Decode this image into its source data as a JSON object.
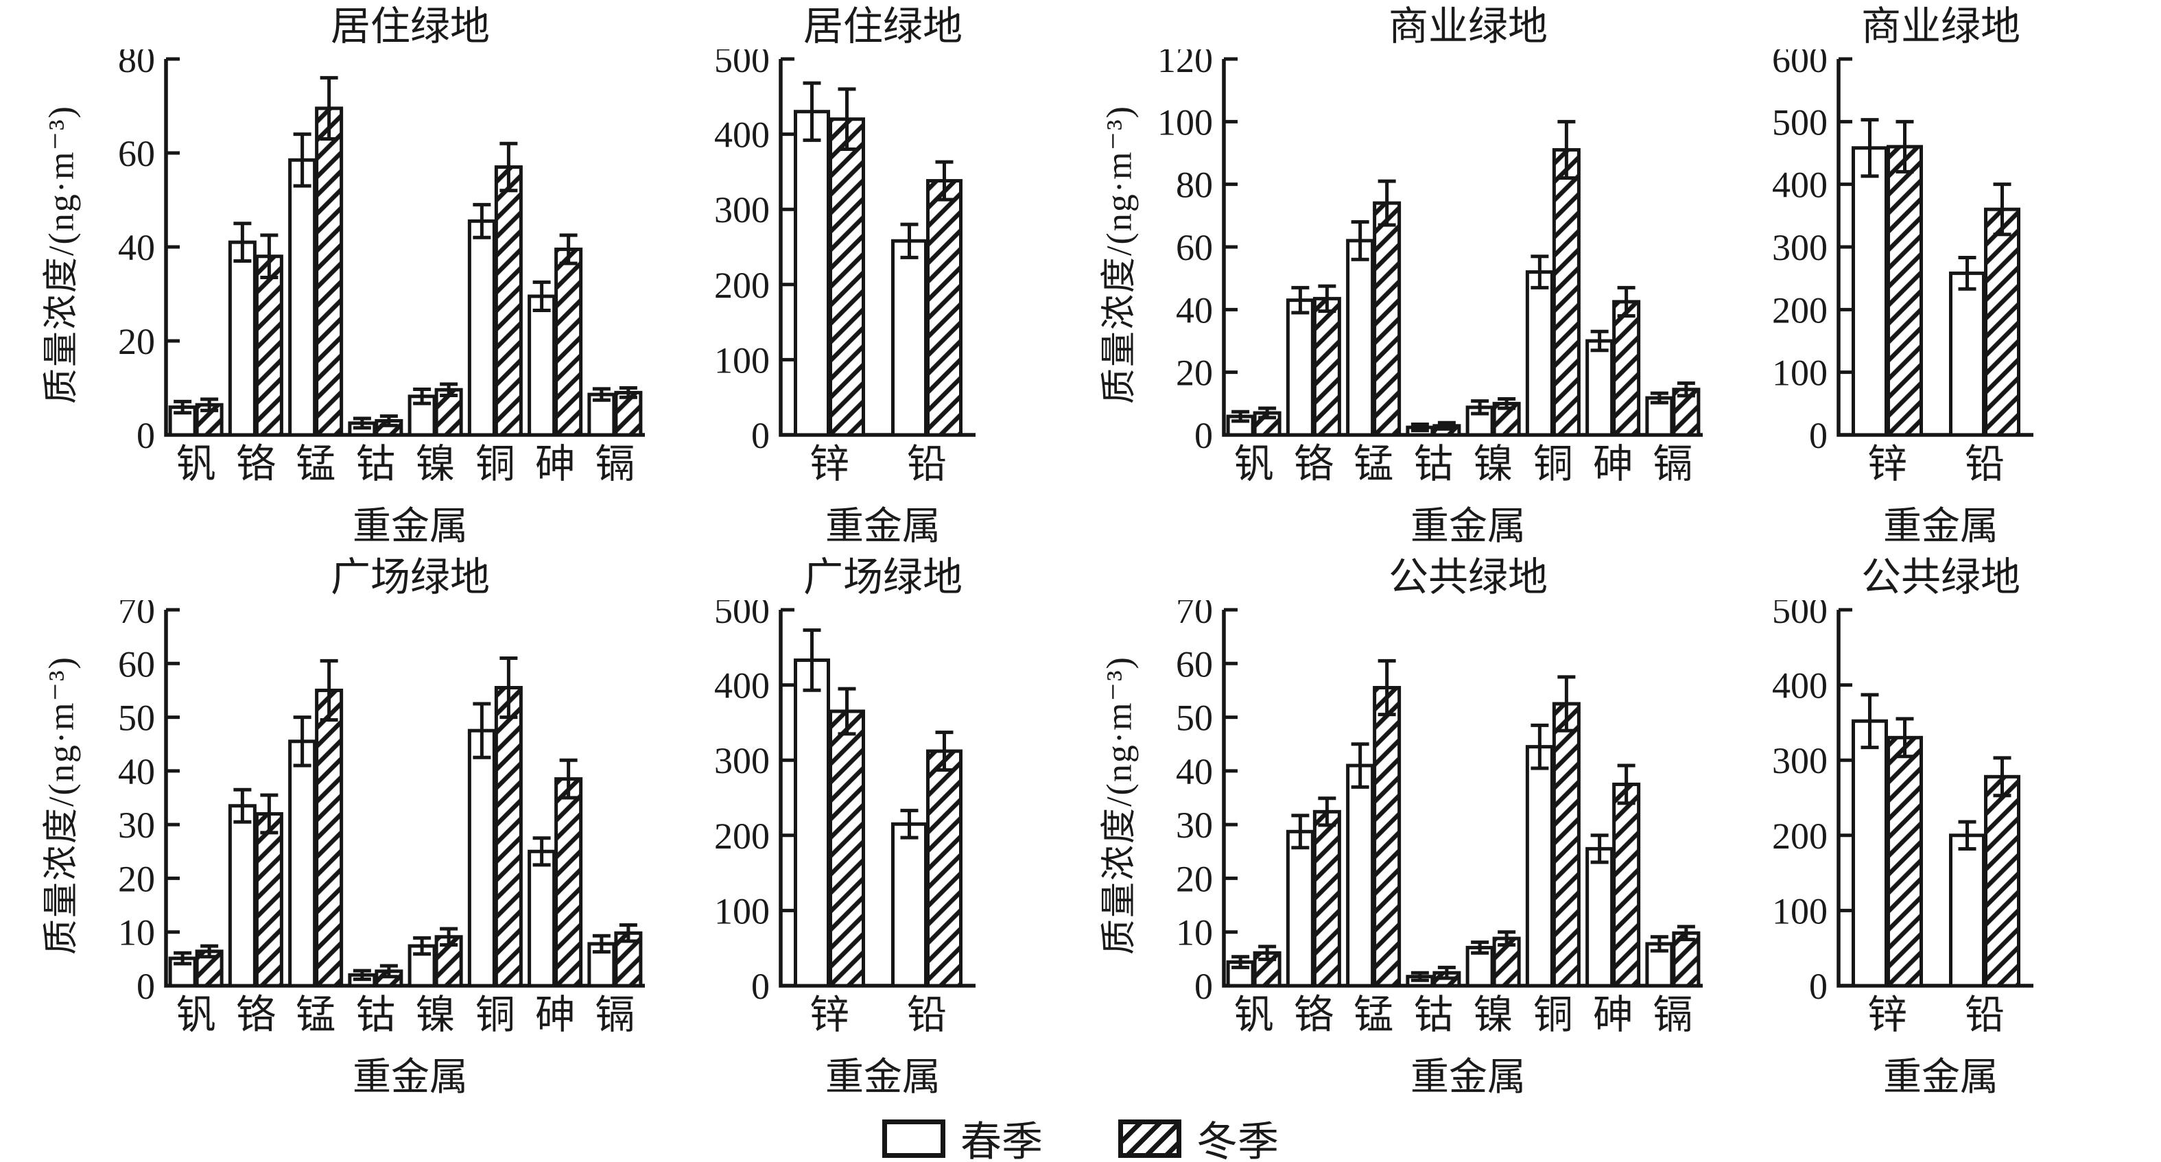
{
  "figure": {
    "background": "#ffffff",
    "ink": "#161616"
  },
  "legend": {
    "spring": "春季",
    "winter": "冬季"
  },
  "chart_data": [
    {
      "type": "bar",
      "size": "main",
      "title": "居住绿地",
      "ylabel": "质量浓度/(ng·m⁻³)",
      "xlabel": "重金属",
      "ylim": [
        0,
        80
      ],
      "ytick_step": 20,
      "grid": false,
      "error_bars": true,
      "categories": [
        "钒",
        "铬",
        "锰",
        "钴",
        "镍",
        "铜",
        "砷",
        "镉"
      ],
      "series": [
        {
          "name": "春季",
          "pattern": "plain",
          "values": [
            5.9,
            41,
            58.5,
            2.5,
            8.2,
            45.5,
            29.5,
            8.6
          ],
          "errors": [
            1.2,
            4,
            5.5,
            1,
            1.5,
            3.5,
            3,
            1.2
          ]
        },
        {
          "name": "冬季",
          "pattern": "hatch",
          "values": [
            6.4,
            38,
            69.5,
            3,
            9.6,
            57,
            39.5,
            9
          ],
          "errors": [
            1.2,
            4.5,
            6.5,
            1,
            1.2,
            5,
            3,
            1
          ]
        }
      ]
    },
    {
      "type": "bar",
      "size": "small",
      "title": "居住绿地",
      "xlabel": "重金属",
      "ylim": [
        0,
        500
      ],
      "ytick_step": 100,
      "grid": false,
      "error_bars": true,
      "categories": [
        "锌",
        "铅"
      ],
      "series": [
        {
          "name": "春季",
          "pattern": "plain",
          "values": [
            430,
            258
          ],
          "errors": [
            38,
            22
          ]
        },
        {
          "name": "冬季",
          "pattern": "hatch",
          "values": [
            420,
            338
          ],
          "errors": [
            40,
            25
          ]
        }
      ]
    },
    {
      "type": "bar",
      "size": "main",
      "title": "商业绿地",
      "ylabel": "质量浓度/(ng·m⁻³)",
      "xlabel": "重金属",
      "ylim": [
        0,
        120
      ],
      "ytick_step": 20,
      "grid": false,
      "error_bars": true,
      "categories": [
        "钒",
        "铬",
        "锰",
        "钴",
        "镍",
        "铜",
        "砷",
        "镉"
      ],
      "series": [
        {
          "name": "春季",
          "pattern": "plain",
          "values": [
            5.9,
            43,
            62,
            2.4,
            8.8,
            52,
            30,
            11.8
          ],
          "errors": [
            1.5,
            4,
            6,
            1,
            2,
            5,
            3,
            1.5
          ]
        },
        {
          "name": "冬季",
          "pattern": "hatch",
          "values": [
            7,
            43.5,
            74,
            2.9,
            10,
            91,
            42.5,
            14.5
          ],
          "errors": [
            1.5,
            4,
            7,
            1,
            1.5,
            9,
            4.5,
            2
          ]
        }
      ]
    },
    {
      "type": "bar",
      "size": "small",
      "title": "商业绿地",
      "xlabel": "重金属",
      "ylim": [
        0,
        600
      ],
      "ytick_step": 100,
      "grid": false,
      "error_bars": true,
      "categories": [
        "锌",
        "铅"
      ],
      "series": [
        {
          "name": "春季",
          "pattern": "plain",
          "values": [
            458,
            258
          ],
          "errors": [
            45,
            25
          ]
        },
        {
          "name": "冬季",
          "pattern": "hatch",
          "values": [
            460,
            360
          ],
          "errors": [
            40,
            40
          ]
        }
      ]
    },
    {
      "type": "bar",
      "size": "main",
      "title": "广场绿地",
      "ylabel": "质量浓度/(ng·m⁻³)",
      "xlabel": "重金属",
      "ylim": [
        0,
        70
      ],
      "ytick_step": 10,
      "grid": false,
      "error_bars": true,
      "categories": [
        "钒",
        "铬",
        "锰",
        "钴",
        "镍",
        "铜",
        "砷",
        "镉"
      ],
      "series": [
        {
          "name": "春季",
          "pattern": "plain",
          "values": [
            5.1,
            33.5,
            45.5,
            2,
            7.4,
            47.5,
            25,
            7.8
          ],
          "errors": [
            1,
            3,
            4.5,
            0.8,
            1.5,
            5,
            2.5,
            1.5
          ]
        },
        {
          "name": "冬季",
          "pattern": "hatch",
          "values": [
            6.4,
            32,
            55,
            2.7,
            9.1,
            55.5,
            38.5,
            9.8
          ],
          "errors": [
            1,
            3.5,
            5.5,
            1,
            1.5,
            5.5,
            3.5,
            1.5
          ]
        }
      ]
    },
    {
      "type": "bar",
      "size": "small",
      "title": "广场绿地",
      "xlabel": "重金属",
      "ylim": [
        0,
        500
      ],
      "ytick_step": 100,
      "grid": false,
      "error_bars": true,
      "categories": [
        "锌",
        "铅"
      ],
      "series": [
        {
          "name": "春季",
          "pattern": "plain",
          "values": [
            433,
            215
          ],
          "errors": [
            40,
            18
          ]
        },
        {
          "name": "冬季",
          "pattern": "hatch",
          "values": [
            365,
            312
          ],
          "errors": [
            30,
            25
          ]
        }
      ]
    },
    {
      "type": "bar",
      "size": "main",
      "title": "公共绿地",
      "ylabel": "质量浓度/(ng·m⁻³)",
      "xlabel": "重金属",
      "ylim": [
        0,
        70
      ],
      "ytick_step": 10,
      "grid": false,
      "error_bars": true,
      "categories": [
        "钒",
        "铬",
        "锰",
        "钴",
        "镍",
        "铜",
        "砷",
        "镉"
      ],
      "series": [
        {
          "name": "春季",
          "pattern": "plain",
          "values": [
            4.4,
            28.7,
            41,
            1.7,
            7.1,
            44.5,
            25.5,
            7.8
          ],
          "errors": [
            1,
            3,
            4,
            0.7,
            1,
            4,
            2.5,
            1.3
          ]
        },
        {
          "name": "冬季",
          "pattern": "hatch",
          "values": [
            6.1,
            32.4,
            55.5,
            2.4,
            8.8,
            52.5,
            37.5,
            9.8
          ],
          "errors": [
            1.2,
            2.5,
            5,
            1,
            1.2,
            5,
            3.5,
            1.2
          ]
        }
      ]
    },
    {
      "type": "bar",
      "size": "small",
      "title": "公共绿地",
      "xlabel": "重金属",
      "ylim": [
        0,
        500
      ],
      "ytick_step": 100,
      "grid": false,
      "error_bars": true,
      "categories": [
        "锌",
        "铅"
      ],
      "series": [
        {
          "name": "春季",
          "pattern": "plain",
          "values": [
            352,
            200
          ],
          "errors": [
            35,
            18
          ]
        },
        {
          "name": "冬季",
          "pattern": "hatch",
          "values": [
            330,
            278
          ],
          "errors": [
            25,
            25
          ]
        }
      ]
    }
  ]
}
